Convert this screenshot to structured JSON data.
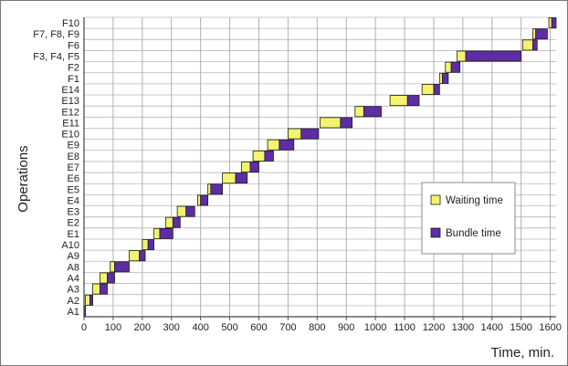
{
  "chart_data": {
    "type": "bar",
    "subtype": "stacked-horizontal-gantt",
    "ylabel": "Operations",
    "xlabel": "Time, min.",
    "xlim": [
      0,
      1620
    ],
    "xticks": [
      0,
      100,
      200,
      300,
      400,
      500,
      600,
      700,
      800,
      900,
      1000,
      1100,
      1200,
      1300,
      1400,
      1500,
      1600
    ],
    "grid": true,
    "legend_position": "right",
    "categories": [
      "A1",
      "A2",
      "A3",
      "A4",
      "A8",
      "A9",
      "A10",
      "E1",
      "E2",
      "E3",
      "E4",
      "E5",
      "E6",
      "E7",
      "E8",
      "E9",
      "E10",
      "E11",
      "E12",
      "E13",
      "E14",
      "F1",
      "F2",
      "F3, F4, F5",
      "F6",
      "F7, F8, F9",
      "F10"
    ],
    "series": [
      {
        "name": "Waiting time",
        "color": "#f3f36e",
        "start": [
          0,
          5,
          30,
          55,
          90,
          155,
          200,
          240,
          280,
          320,
          390,
          425,
          475,
          540,
          580,
          630,
          700,
          810,
          930,
          1050,
          1160,
          1220,
          1240,
          1280,
          1505,
          1540,
          1595
        ],
        "values": [
          0,
          15,
          25,
          25,
          15,
          35,
          20,
          20,
          25,
          30,
          10,
          10,
          45,
          30,
          40,
          40,
          45,
          70,
          30,
          60,
          40,
          10,
          20,
          30,
          35,
          10,
          10
        ]
      },
      {
        "name": "Bundle time",
        "color": "#5e2ca5",
        "start": [
          0,
          20,
          55,
          80,
          105,
          190,
          220,
          260,
          305,
          350,
          400,
          435,
          520,
          570,
          620,
          670,
          745,
          880,
          960,
          1110,
          1200,
          1230,
          1260,
          1310,
          1540,
          1550,
          1605
        ],
        "values": [
          5,
          10,
          25,
          25,
          50,
          20,
          20,
          45,
          25,
          30,
          25,
          40,
          40,
          30,
          30,
          50,
          60,
          40,
          60,
          40,
          20,
          20,
          30,
          190,
          15,
          40,
          15
        ]
      }
    ]
  }
}
